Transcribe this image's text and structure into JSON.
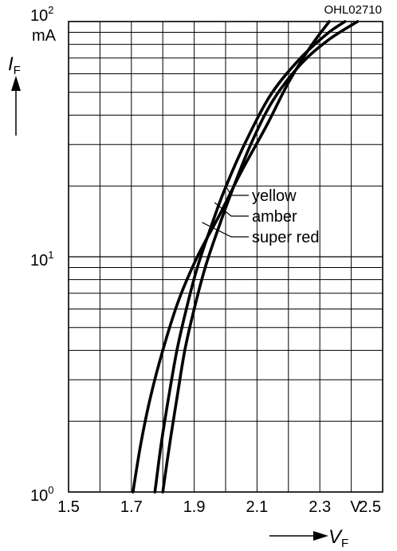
{
  "chart_data": {
    "type": "line",
    "code": "OHL02710",
    "y_unit": "mA",
    "y_label": "I",
    "y_label_sub": "F",
    "x_unit": "V",
    "x_label": "V",
    "x_label_sub": "F",
    "x_scale": "linear",
    "y_scale": "log",
    "xlim": [
      1.5,
      2.5
    ],
    "ylim": [
      1,
      100
    ],
    "grid": true,
    "x_ticks": [
      {
        "value": 1.5,
        "label": "1.5"
      },
      {
        "value": 1.7,
        "label": "1.7"
      },
      {
        "value": 1.9,
        "label": "1.9"
      },
      {
        "value": 2.1,
        "label": "2.1"
      },
      {
        "value": 2.3,
        "label": "2.3"
      },
      {
        "value": 2.5,
        "label": "2.5"
      }
    ],
    "y_ticks": [
      {
        "value": 1,
        "base": "10",
        "exp": "0"
      },
      {
        "value": 10,
        "base": "10",
        "exp": "1"
      },
      {
        "value": 100,
        "base": "10",
        "exp": "2"
      }
    ],
    "series": [
      {
        "name": "yellow",
        "x": [
          1.8,
          1.822,
          1.845,
          1.87,
          1.9,
          1.935,
          1.975,
          2.02,
          2.08,
          2.15,
          2.24,
          2.33,
          2.42
        ],
        "y": [
          1,
          1.6,
          2.5,
          4,
          6,
          9,
          13,
          19,
          30,
          46,
          66,
          84,
          100
        ]
      },
      {
        "name": "amber",
        "x": [
          1.775,
          1.795,
          1.818,
          1.845,
          1.875,
          1.91,
          1.95,
          1.995,
          2.06,
          2.14,
          2.23,
          2.32,
          2.38
        ],
        "y": [
          1,
          1.6,
          2.5,
          4,
          6,
          9,
          13,
          19,
          30,
          48,
          68,
          88,
          100
        ]
      },
      {
        "name": "super red",
        "x": [
          1.705,
          1.73,
          1.76,
          1.8,
          1.85,
          1.91,
          1.98,
          2.05,
          2.13,
          2.2,
          2.27,
          2.33
        ],
        "y": [
          1,
          1.6,
          2.5,
          4,
          6.5,
          10,
          15,
          23,
          36,
          55,
          78,
          100
        ]
      }
    ],
    "annotations": [
      {
        "text": "yellow",
        "points_to": {
          "x": 2.0,
          "y": 20
        }
      },
      {
        "text": "amber",
        "points_to": {
          "x": 1.965,
          "y": 17
        }
      },
      {
        "text": "super red",
        "points_to": {
          "x": 1.925,
          "y": 14
        }
      }
    ]
  }
}
